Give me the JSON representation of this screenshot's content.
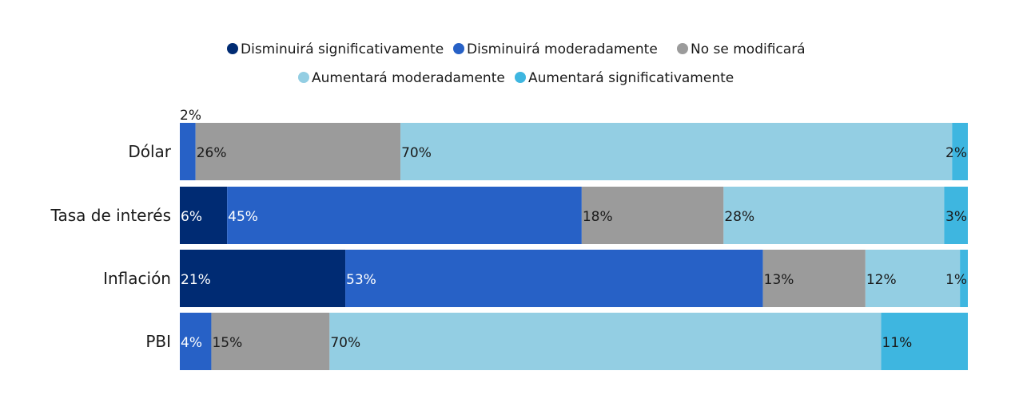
{
  "chart_data": {
    "type": "bar",
    "orientation": "horizontal",
    "stacked": true,
    "normalized_percent": true,
    "title": "",
    "xlabel": "",
    "ylabel": "",
    "xlim": [
      0,
      100
    ],
    "grid": false,
    "legend_position": "top",
    "categories": [
      "Dólar",
      "Tasa de interés",
      "Inflación",
      "PBI"
    ],
    "series": [
      {
        "name": "Disminuirá significativamente",
        "color": "#002b73",
        "label_color": "#ffffff",
        "values": [
          0,
          6,
          21,
          0
        ],
        "labels": [
          "",
          "6%",
          "21%",
          ""
        ]
      },
      {
        "name": "Disminuirá moderadamente",
        "color": "#2761c6",
        "label_color": "#ffffff",
        "values": [
          2,
          45,
          53,
          4
        ],
        "labels": [
          "2%",
          "45%",
          "53%",
          "4%"
        ]
      },
      {
        "name": "No se modificará",
        "color": "#9b9b9b",
        "label_color": "#1a1a1a",
        "values": [
          26,
          18,
          13,
          15
        ],
        "labels": [
          "26%",
          "18%",
          "13%",
          "15%"
        ]
      },
      {
        "name": "Aumentará moderadamente",
        "color": "#93cee3",
        "label_color": "#1a1a1a",
        "values": [
          70,
          28,
          12,
          70
        ],
        "labels": [
          "70%",
          "28%",
          "12%",
          "70%"
        ]
      },
      {
        "name": "Aumentará significativamente",
        "color": "#3eb6e0",
        "label_color": "#1a1a1a",
        "values": [
          2,
          3,
          1,
          11
        ],
        "labels": [
          "2%",
          "3%",
          "1%",
          "11%"
        ]
      }
    ]
  }
}
